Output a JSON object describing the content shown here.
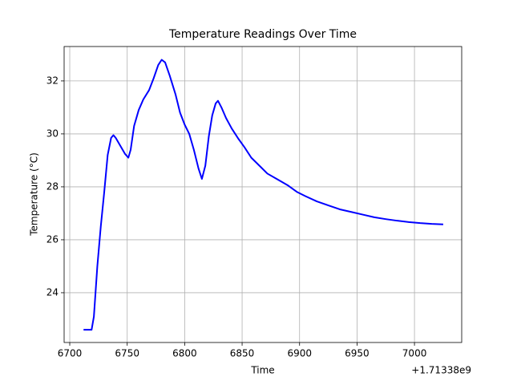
{
  "chart_data": {
    "type": "line",
    "title": "Temperature Readings Over Time",
    "xlabel": "Time",
    "ylabel": "Temperature (°C)",
    "x_offset_label": "+1.71338e9",
    "x": [
      6712,
      6719,
      6721,
      6724,
      6727,
      6730,
      6733,
      6736,
      6738,
      6740,
      6744,
      6748,
      6751,
      6753,
      6756,
      6760,
      6764,
      6769,
      6773,
      6777,
      6780,
      6783,
      6787,
      6792,
      6796,
      6800,
      6804,
      6808,
      6812,
      6815,
      6818,
      6821,
      6824,
      6827,
      6829,
      6832,
      6836,
      6841,
      6847,
      6852,
      6858,
      6865,
      6872,
      6880,
      6890,
      6898,
      6905,
      6915,
      6925,
      6935,
      6945,
      6955,
      6965,
      6975,
      6985,
      6995,
      7005,
      7015,
      7025
    ],
    "series": [
      {
        "name": "Temperature",
        "color": "#0000ff",
        "values": [
          22.6,
          22.6,
          23.1,
          25,
          26.5,
          27.8,
          29.2,
          29.85,
          29.95,
          29.85,
          29.55,
          29.25,
          29.1,
          29.4,
          30.3,
          30.9,
          31.3,
          31.65,
          32.1,
          32.6,
          32.8,
          32.7,
          32.2,
          31.5,
          30.8,
          30.35,
          30,
          29.4,
          28.7,
          28.3,
          28.8,
          29.9,
          30.7,
          31.15,
          31.25,
          31,
          30.6,
          30.2,
          29.8,
          29.5,
          29.1,
          28.8,
          28.5,
          28.3,
          28.05,
          27.8,
          27.65,
          27.45,
          27.3,
          27.15,
          27.05,
          26.95,
          26.85,
          26.78,
          26.72,
          26.67,
          26.63,
          26.6,
          26.58
        ]
      }
    ],
    "xlim": [
      6695.1,
      7041.1
    ],
    "ylim": [
      22.12,
      33.3
    ],
    "xticks": [
      6700,
      6750,
      6800,
      6850,
      6900,
      6950,
      7000
    ],
    "yticks": [
      24,
      26,
      28,
      30,
      32
    ],
    "grid": true
  }
}
